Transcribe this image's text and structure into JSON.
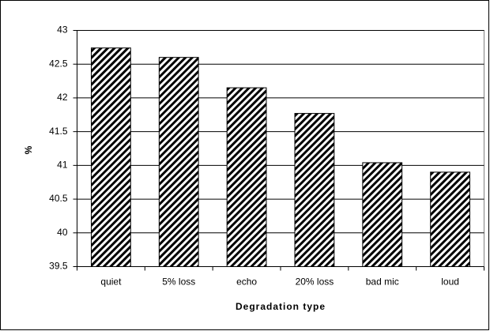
{
  "chart_data": {
    "type": "bar",
    "x_label": "Degradation type",
    "y_label": "%",
    "categories": [
      "quiet",
      "5% loss",
      "echo",
      "20% loss",
      "bad mic",
      "loud"
    ],
    "values": [
      42.74,
      42.6,
      42.15,
      41.77,
      41.04,
      40.9
    ],
    "ylim": [
      39.5,
      43
    ],
    "yticks": [
      39.5,
      40,
      40.5,
      41,
      41.5,
      42,
      42.5,
      43
    ],
    "grid": true
  }
}
